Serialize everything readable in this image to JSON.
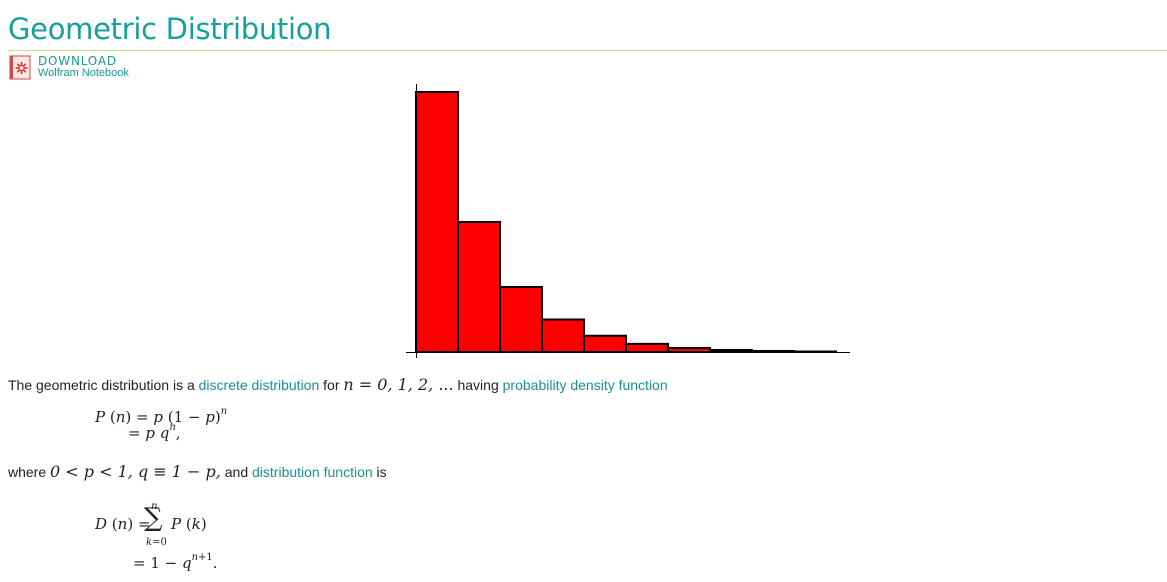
{
  "page": {
    "title": "Geometric Distribution",
    "download": {
      "label": "DOWNLOAD",
      "sublabel": "Wolfram Notebook",
      "icon": "notebook-icon"
    }
  },
  "colors": {
    "title": "#17a09a",
    "link": "#1a8f96",
    "rule": "#c6dd8a",
    "bar": "#ff0000"
  },
  "chart_data": {
    "type": "bar",
    "values": [
      1.0,
      0.5,
      0.25,
      0.125,
      0.0625,
      0.03125,
      0.015625,
      0.0078125,
      0.00390625,
      0.001953125
    ],
    "xlabel": "",
    "ylabel": "",
    "grid": false
  },
  "text1": {
    "pre": "The geometric distribution is a ",
    "link1": "discrete distribution",
    "mid": " for ",
    "math": "n = 0, 1, 2, ...",
    "post": " having ",
    "link2": "probability density function"
  },
  "eq1": {
    "line1": "P(n) = p(1 − p)^n",
    "line2": "= p q^n,"
  },
  "text2": {
    "pre": "where ",
    "math": "0 < p < 1, q ≡ 1 − p,",
    "mid": " and ",
    "link": "distribution function",
    "post": " is"
  },
  "eq2": {
    "line1": "D(n) = Σ_{k=0}^{n} P(k)",
    "line2": "= 1 − q^{n+1}."
  }
}
